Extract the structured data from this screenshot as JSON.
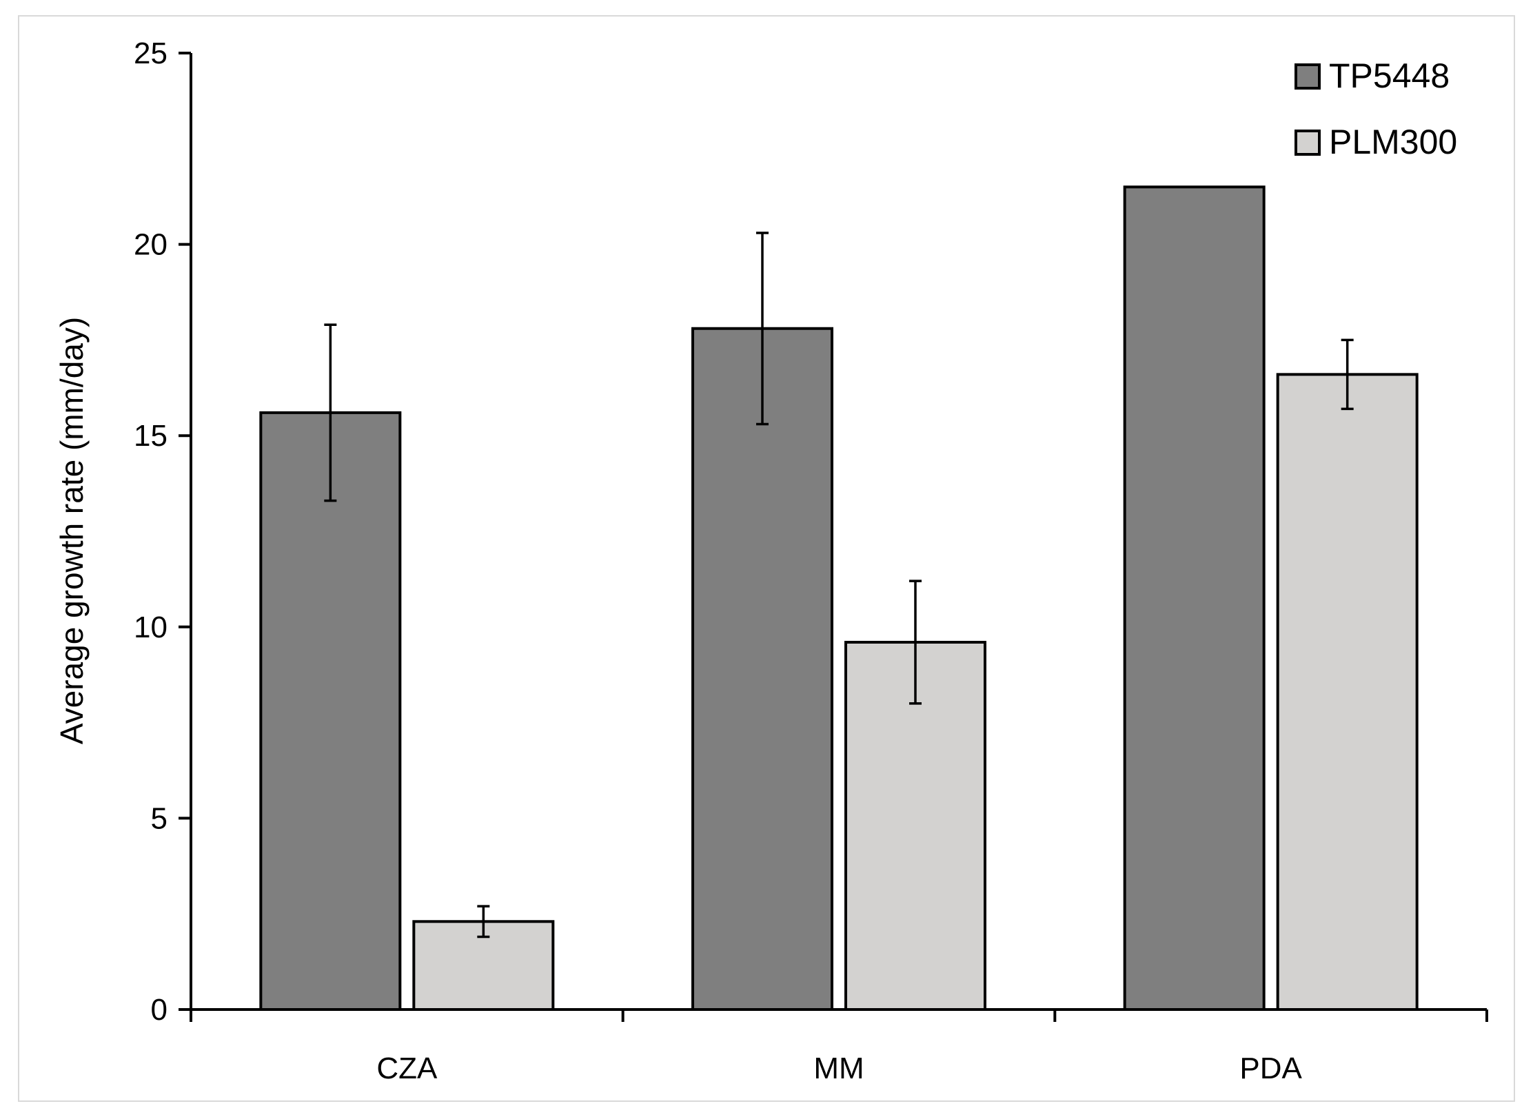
{
  "chart_data": {
    "type": "bar",
    "categories": [
      "CZA",
      "MM",
      "PDA"
    ],
    "series": [
      {
        "name": "TP5448",
        "color": "#7f7f7f",
        "values": [
          15.6,
          17.8,
          21.5
        ],
        "error": [
          2.3,
          2.5,
          null
        ]
      },
      {
        "name": "PLM300",
        "color": "#d3d2d0",
        "values": [
          2.3,
          9.6,
          16.6
        ],
        "error": [
          0.4,
          1.6,
          0.9
        ]
      }
    ],
    "title": "",
    "xlabel": "",
    "ylabel": "Average growth rate (mm/day)",
    "ylim": [
      0,
      25
    ],
    "yticks": [
      0,
      5,
      10,
      15,
      20,
      25
    ],
    "grid": false,
    "legend_position": "top-right"
  }
}
